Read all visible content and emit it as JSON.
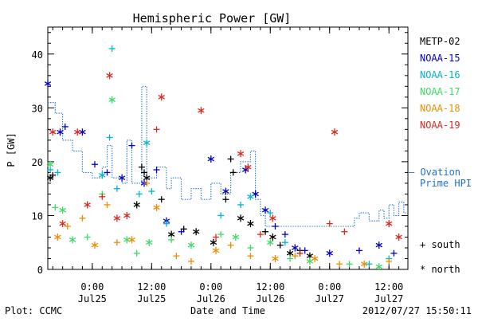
{
  "chart_data": {
    "type": "scatter",
    "title": "Hemispheric Power [GW]",
    "ylabel": "P [GW]",
    "xlabel": "Date and Time",
    "ylim": [
      0,
      45
    ],
    "yticks": [
      0,
      10,
      20,
      30,
      40
    ],
    "xlim": [
      "2012-07-24 15:00",
      "2012-07-27 15:50"
    ],
    "xticks": [
      {
        "time": "2012-07-25 00:00",
        "top": "0:00",
        "bottom": "Jul25"
      },
      {
        "time": "2012-07-25 12:00",
        "top": "12:00",
        "bottom": "Jul25"
      },
      {
        "time": "2012-07-26 00:00",
        "top": "0:00",
        "bottom": "Jul26"
      },
      {
        "time": "2012-07-26 12:00",
        "top": "12:00",
        "bottom": "Jul26"
      },
      {
        "time": "2012-07-27 00:00",
        "top": "0:00",
        "bottom": "Jul27"
      },
      {
        "time": "2012-07-27 12:00",
        "top": "12:00",
        "bottom": "Jul27"
      }
    ],
    "footer_left": "Plot: CCMC",
    "footer_right": "2012/07/27 15:50:11",
    "legend_placement": "right",
    "marker_legend": {
      "plus": "+ south",
      "star": "* north"
    },
    "series": [
      {
        "name": "METP-02",
        "color": "#000000",
        "points": [
          [
            "2012-07-24 15:30",
            17.0,
            "star"
          ],
          [
            "2012-07-24 16:00",
            17.5,
            "plus"
          ],
          [
            "2012-07-25 09:00",
            12.0,
            "star"
          ],
          [
            "2012-07-25 10:00",
            19.0,
            "plus"
          ],
          [
            "2012-07-25 10:30",
            18.0,
            "plus"
          ],
          [
            "2012-07-25 11:00",
            17.0,
            "star"
          ],
          [
            "2012-07-25 14:00",
            13.0,
            "plus"
          ],
          [
            "2012-07-25 16:00",
            6.5,
            "star"
          ],
          [
            "2012-07-25 18:30",
            7.5,
            "plus"
          ],
          [
            "2012-07-25 21:00",
            7.0,
            "star"
          ],
          [
            "2012-07-26 00:30",
            5.0,
            "star"
          ],
          [
            "2012-07-26 03:00",
            13.0,
            "plus"
          ],
          [
            "2012-07-26 04:00",
            20.5,
            "plus"
          ],
          [
            "2012-07-26 04:30",
            18.0,
            "plus"
          ],
          [
            "2012-07-26 06:00",
            9.5,
            "star"
          ],
          [
            "2012-07-26 08:00",
            8.5,
            "star"
          ],
          [
            "2012-07-26 11:00",
            7.0,
            "plus"
          ],
          [
            "2012-07-26 12:30",
            6.0,
            "star"
          ],
          [
            "2012-07-26 14:00",
            4.5,
            "plus"
          ],
          [
            "2012-07-26 16:00",
            3.0,
            "star"
          ],
          [
            "2012-07-26 18:00",
            3.5,
            "plus"
          ],
          [
            "2012-07-26 20:00",
            2.5,
            "star"
          ]
        ]
      },
      {
        "name": "NOAA-15",
        "color": "#0000c8",
        "points": [
          [
            "2012-07-24 15:00",
            34.5,
            "star"
          ],
          [
            "2012-07-24 17:30",
            25.5,
            "star"
          ],
          [
            "2012-07-24 18:30",
            26.5,
            "plus"
          ],
          [
            "2012-07-24 22:00",
            25.5,
            "star"
          ],
          [
            "2012-07-25 00:30",
            19.5,
            "plus"
          ],
          [
            "2012-07-25 03:00",
            18.0,
            "plus"
          ],
          [
            "2012-07-25 06:00",
            17.0,
            "star"
          ],
          [
            "2012-07-25 08:00",
            23.0,
            "plus"
          ],
          [
            "2012-07-25 10:30",
            16.0,
            "star"
          ],
          [
            "2012-07-25 13:00",
            18.5,
            "plus"
          ],
          [
            "2012-07-25 15:00",
            9.0,
            "star"
          ],
          [
            "2012-07-25 18:00",
            7.0,
            "plus"
          ],
          [
            "2012-07-26 00:00",
            20.5,
            "star"
          ],
          [
            "2012-07-26 03:00",
            14.5,
            "star"
          ],
          [
            "2012-07-26 07:00",
            18.5,
            "star"
          ],
          [
            "2012-07-26 09:00",
            14.0,
            "star"
          ],
          [
            "2012-07-26 11:00",
            11.0,
            "star"
          ],
          [
            "2012-07-26 13:00",
            8.0,
            "plus"
          ],
          [
            "2012-07-26 15:00",
            6.5,
            "plus"
          ],
          [
            "2012-07-26 17:00",
            4.0,
            "star"
          ],
          [
            "2012-07-26 19:00",
            3.5,
            "plus"
          ],
          [
            "2012-07-27 00:00",
            3.0,
            "star"
          ],
          [
            "2012-07-27 06:00",
            3.5,
            "plus"
          ],
          [
            "2012-07-27 10:00",
            4.5,
            "star"
          ],
          [
            "2012-07-27 13:00",
            3.0,
            "plus"
          ]
        ]
      },
      {
        "name": "NOAA-16",
        "color": "#00b4d2",
        "points": [
          [
            "2012-07-24 15:30",
            18.5,
            "plus"
          ],
          [
            "2012-07-24 17:00",
            18.0,
            "plus"
          ],
          [
            "2012-07-25 02:00",
            17.5,
            "star"
          ],
          [
            "2012-07-25 03:30",
            24.5,
            "plus"
          ],
          [
            "2012-07-25 04:00",
            41.0,
            "plus"
          ],
          [
            "2012-07-25 05:00",
            15.0,
            "plus"
          ],
          [
            "2012-07-25 09:30",
            14.0,
            "plus"
          ],
          [
            "2012-07-25 11:00",
            23.5,
            "star"
          ],
          [
            "2012-07-25 12:00",
            14.5,
            "plus"
          ],
          [
            "2012-07-25 15:00",
            8.5,
            "plus"
          ],
          [
            "2012-07-26 02:00",
            10.0,
            "plus"
          ],
          [
            "2012-07-26 06:00",
            12.0,
            "plus"
          ],
          [
            "2012-07-26 08:00",
            13.5,
            "star"
          ],
          [
            "2012-07-26 12:00",
            10.5,
            "plus"
          ],
          [
            "2012-07-26 15:00",
            5.0,
            "plus"
          ],
          [
            "2012-07-26 18:00",
            3.0,
            "plus"
          ],
          [
            "2012-07-27 08:00",
            1.0,
            "plus"
          ],
          [
            "2012-07-27 12:00",
            2.0,
            "plus"
          ]
        ]
      },
      {
        "name": "NOAA-17",
        "color": "#3cdc64",
        "points": [
          [
            "2012-07-24 15:30",
            19.5,
            "star"
          ],
          [
            "2012-07-24 16:30",
            11.5,
            "plus"
          ],
          [
            "2012-07-24 18:00",
            11.0,
            "star"
          ],
          [
            "2012-07-24 20:00",
            5.5,
            "star"
          ],
          [
            "2012-07-24 23:00",
            6.0,
            "plus"
          ],
          [
            "2012-07-25 02:00",
            14.0,
            "plus"
          ],
          [
            "2012-07-25 04:00",
            31.5,
            "star"
          ],
          [
            "2012-07-25 07:00",
            5.5,
            "star"
          ],
          [
            "2012-07-25 09:00",
            3.0,
            "plus"
          ],
          [
            "2012-07-25 11:30",
            5.0,
            "star"
          ],
          [
            "2012-07-25 16:00",
            5.5,
            "plus"
          ],
          [
            "2012-07-25 20:00",
            4.5,
            "star"
          ],
          [
            "2012-07-26 02:00",
            6.5,
            "plus"
          ],
          [
            "2012-07-26 05:00",
            6.0,
            "star"
          ],
          [
            "2012-07-26 08:00",
            4.0,
            "plus"
          ],
          [
            "2012-07-26 12:00",
            5.0,
            "star"
          ],
          [
            "2012-07-26 16:00",
            2.0,
            "plus"
          ],
          [
            "2012-07-26 20:00",
            1.5,
            "star"
          ],
          [
            "2012-07-27 04:00",
            1.0,
            "plus"
          ],
          [
            "2012-07-27 10:00",
            0.5,
            "star"
          ]
        ]
      },
      {
        "name": "NOAA-18",
        "color": "#f08c00",
        "points": [
          [
            "2012-07-24 17:00",
            6.0,
            "star"
          ],
          [
            "2012-07-24 19:00",
            8.0,
            "plus"
          ],
          [
            "2012-07-24 22:00",
            9.5,
            "plus"
          ],
          [
            "2012-07-25 00:30",
            4.5,
            "star"
          ],
          [
            "2012-07-25 03:00",
            12.0,
            "plus"
          ],
          [
            "2012-07-25 05:00",
            5.0,
            "plus"
          ],
          [
            "2012-07-25 08:00",
            5.5,
            "star"
          ],
          [
            "2012-07-25 11:00",
            16.0,
            "plus"
          ],
          [
            "2012-07-25 13:00",
            11.5,
            "star"
          ],
          [
            "2012-07-25 17:00",
            2.5,
            "plus"
          ],
          [
            "2012-07-25 20:00",
            1.5,
            "plus"
          ],
          [
            "2012-07-26 01:00",
            3.5,
            "star"
          ],
          [
            "2012-07-26 04:00",
            4.5,
            "plus"
          ],
          [
            "2012-07-26 08:00",
            2.5,
            "plus"
          ],
          [
            "2012-07-26 13:00",
            2.0,
            "star"
          ],
          [
            "2012-07-26 17:00",
            2.5,
            "plus"
          ],
          [
            "2012-07-26 21:00",
            2.0,
            "star"
          ],
          [
            "2012-07-27 02:00",
            1.0,
            "plus"
          ],
          [
            "2012-07-27 07:00",
            1.0,
            "star"
          ],
          [
            "2012-07-27 12:00",
            1.5,
            "plus"
          ]
        ]
      },
      {
        "name": "NOAA-19",
        "color": "#dc281e",
        "points": [
          [
            "2012-07-24 16:00",
            25.5,
            "star"
          ],
          [
            "2012-07-24 18:00",
            8.5,
            "star"
          ],
          [
            "2012-07-24 21:00",
            25.5,
            "star"
          ],
          [
            "2012-07-24 23:00",
            12.0,
            "star"
          ],
          [
            "2012-07-25 02:00",
            13.5,
            "plus"
          ],
          [
            "2012-07-25 03:30",
            36.0,
            "star"
          ],
          [
            "2012-07-25 05:00",
            9.5,
            "star"
          ],
          [
            "2012-07-25 07:00",
            10.0,
            "star"
          ],
          [
            "2012-07-25 13:00",
            26.0,
            "plus"
          ],
          [
            "2012-07-25 14:00",
            32.0,
            "star"
          ],
          [
            "2012-07-25 22:00",
            29.5,
            "star"
          ],
          [
            "2012-07-26 01:00",
            6.0,
            "plus"
          ],
          [
            "2012-07-26 06:00",
            21.5,
            "star"
          ],
          [
            "2012-07-26 07:30",
            19.0,
            "star"
          ],
          [
            "2012-07-26 10:00",
            6.5,
            "plus"
          ],
          [
            "2012-07-26 12:30",
            9.5,
            "star"
          ],
          [
            "2012-07-26 18:00",
            3.0,
            "plus"
          ],
          [
            "2012-07-27 00:00",
            8.5,
            "plus"
          ],
          [
            "2012-07-27 01:00",
            25.5,
            "star"
          ],
          [
            "2012-07-27 03:00",
            7.0,
            "plus"
          ],
          [
            "2012-07-27 12:00",
            8.5,
            "star"
          ],
          [
            "2012-07-27 14:00",
            6.0,
            "star"
          ]
        ]
      }
    ],
    "ovation": {
      "legend_line1": "— Ovation",
      "legend_line2": "Prime HPI",
      "color": "#1f6fd0",
      "points": [
        [
          "2012-07-24 15:00",
          31.0
        ],
        [
          "2012-07-24 16:30",
          29.0
        ],
        [
          "2012-07-24 18:00",
          24.0
        ],
        [
          "2012-07-24 20:00",
          22.0
        ],
        [
          "2012-07-24 22:00",
          18.0
        ],
        [
          "2012-07-25 00:00",
          17.0
        ],
        [
          "2012-07-25 02:00",
          19.0
        ],
        [
          "2012-07-25 03:00",
          23.0
        ],
        [
          "2012-07-25 04:00",
          17.0
        ],
        [
          "2012-07-25 06:00",
          16.0
        ],
        [
          "2012-07-25 07:00",
          24.0
        ],
        [
          "2012-07-25 08:00",
          16.0
        ],
        [
          "2012-07-25 10:00",
          34.0
        ],
        [
          "2012-07-25 11:00",
          17.0
        ],
        [
          "2012-07-25 13:00",
          19.0
        ],
        [
          "2012-07-25 15:00",
          15.0
        ],
        [
          "2012-07-25 16:00",
          17.0
        ],
        [
          "2012-07-25 18:00",
          13.0
        ],
        [
          "2012-07-25 20:00",
          15.0
        ],
        [
          "2012-07-25 22:00",
          13.0
        ],
        [
          "2012-07-26 00:00",
          16.0
        ],
        [
          "2012-07-26 02:00",
          14.0
        ],
        [
          "2012-07-26 04:00",
          18.0
        ],
        [
          "2012-07-26 06:00",
          20.0
        ],
        [
          "2012-07-26 08:00",
          22.0
        ],
        [
          "2012-07-26 09:00",
          13.0
        ],
        [
          "2012-07-26 10:00",
          10.0
        ],
        [
          "2012-07-26 11:00",
          8.0
        ],
        [
          "2012-07-27 04:00",
          8.0
        ],
        [
          "2012-07-27 05:00",
          9.5
        ],
        [
          "2012-07-27 06:00",
          10.5
        ],
        [
          "2012-07-27 08:00",
          9.0
        ],
        [
          "2012-07-27 10:00",
          11.0
        ],
        [
          "2012-07-27 11:00",
          9.5
        ],
        [
          "2012-07-27 12:00",
          12.0
        ],
        [
          "2012-07-27 13:00",
          10.0
        ],
        [
          "2012-07-27 14:00",
          12.5
        ],
        [
          "2012-07-27 15:00",
          10.5
        ]
      ]
    }
  }
}
